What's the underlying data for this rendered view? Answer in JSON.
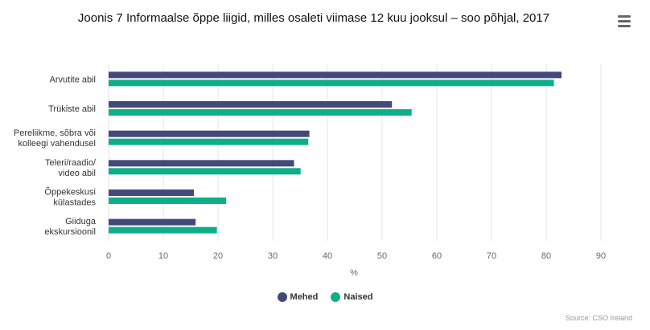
{
  "menu": {
    "icon": "hamburger-menu-icon"
  },
  "chart_data": {
    "type": "bar",
    "orientation": "horizontal",
    "title": "Joonis 7 Informaalse õppe liigid, milles osaleti viimase 12 kuu jooksul – soo põhjal, 2017",
    "categories": [
      [
        "Arvutite abil"
      ],
      [
        "Trükiste abil"
      ],
      [
        "Pereliikme, sõbra või",
        "kolleegi vahendusel"
      ],
      [
        "Teleri/raadio/",
        "video abil"
      ],
      [
        "Õppekeskusi",
        "külastades"
      ],
      [
        "Giiduga",
        "ekskursioonil"
      ]
    ],
    "series": [
      {
        "name": "Mehed",
        "color": "#434a7a",
        "values": [
          82.8,
          51.8,
          36.7,
          33.9,
          15.6,
          15.9
        ]
      },
      {
        "name": "Naised",
        "color": "#0fae8a",
        "values": [
          81.4,
          55.4,
          36.5,
          35.1,
          21.5,
          19.8
        ]
      }
    ],
    "xlabel": "%",
    "xlim": [
      0,
      90
    ],
    "ticks": [
      0,
      10,
      20,
      30,
      40,
      50,
      60,
      70,
      80,
      90
    ],
    "legend": "bottom-center",
    "grid": true
  },
  "credits": "Source: CSO Ireland"
}
